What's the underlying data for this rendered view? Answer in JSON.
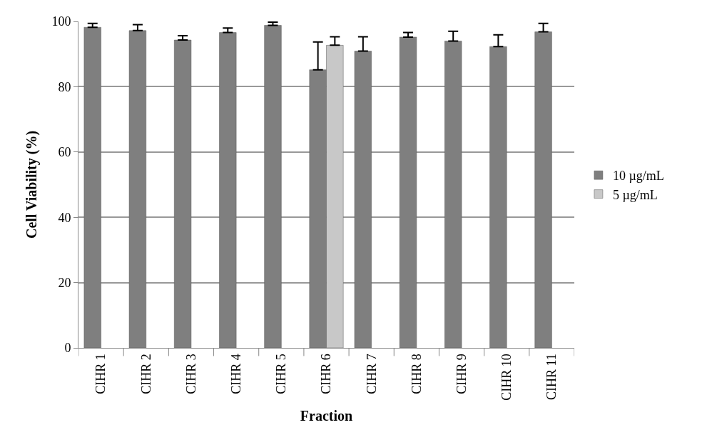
{
  "chart_data": {
    "type": "bar",
    "xlabel": "Fraction",
    "ylabel": "Cell Viability (%)",
    "categories": [
      "CIHR 1",
      "CIHR 2",
      "CIHR 3",
      "CIHR 4",
      "CIHR 5",
      "CIHR 6",
      "CIHR 7",
      "CIHR 8",
      "CIHR 9",
      "CIHR 10",
      "CIHR 11"
    ],
    "series": [
      {
        "name": "10 µg/mL",
        "color": "#7f7f7f",
        "values": [
          98.2,
          97.2,
          94.3,
          96.6,
          98.8,
          85.2,
          90.9,
          95.2,
          94.0,
          92.3,
          96.8
        ],
        "errors": [
          [
            98.2,
            99.4
          ],
          [
            97.2,
            99.0
          ],
          [
            94.3,
            95.6
          ],
          [
            96.6,
            98.0
          ],
          [
            98.8,
            99.8
          ],
          [
            85.2,
            93.7
          ],
          [
            90.9,
            95.3
          ],
          [
            95.2,
            96.6
          ],
          [
            94.0,
            97.0
          ],
          [
            92.3,
            95.9
          ],
          [
            96.8,
            99.4
          ]
        ]
      },
      {
        "name": "5 µg/mL",
        "color": "#c8c8c8",
        "values": [
          null,
          null,
          null,
          null,
          null,
          92.7,
          null,
          null,
          null,
          null,
          null
        ],
        "errors": [
          null,
          null,
          null,
          null,
          null,
          [
            92.7,
            95.3
          ],
          null,
          null,
          null,
          null,
          null
        ]
      }
    ],
    "ylim": [
      0,
      100
    ],
    "yticks": [
      0,
      20,
      40,
      60,
      80,
      100
    ],
    "grid": "y",
    "legend": "right"
  }
}
